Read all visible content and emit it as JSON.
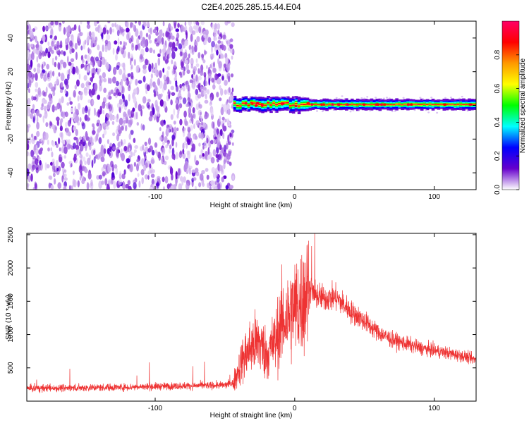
{
  "title": "C2E4.2025.285.15.44.E04",
  "chart_data": [
    {
      "type": "heatmap",
      "xlabel": "Height of straight line (km)",
      "ylabel": "Frequency (Hz)",
      "xlim": [
        -192,
        130
      ],
      "ylim": [
        -50,
        50
      ],
      "xticks": [
        -100,
        0,
        100
      ],
      "yticks": [
        -40,
        -20,
        0,
        20,
        40
      ],
      "colorbar": {
        "label": "Normalized spectral amplitude",
        "range": [
          0,
          1
        ],
        "ticks": [
          0.0,
          0.2,
          0.4,
          0.6,
          0.8
        ],
        "tick_labels": [
          "0.0",
          "0.2",
          "0.4",
          "0.6",
          "0.8"
        ],
        "colors": [
          "#ffffff",
          "#6600cc",
          "#0000ff",
          "#00ffff",
          "#00ff00",
          "#ffff00",
          "#ff9900",
          "#ff0000",
          "#ff0066"
        ]
      },
      "regions": [
        {
          "description_x": [
            -192,
            -44
          ],
          "pattern": "scattered noise",
          "amplitude_range": [
            0.0,
            0.15
          ]
        },
        {
          "description_x": [
            -44,
            130
          ],
          "pattern": "narrow band centered near 0 Hz",
          "band_center_hz": 0.5,
          "band_halfwidth_hz": 2.5,
          "amplitude_range": [
            0.2,
            0.95
          ]
        }
      ]
    },
    {
      "type": "line",
      "xlabel": "Height of straight line (km)",
      "ylabel": "SNR (10 * v/v)",
      "xlim": [
        -192,
        130
      ],
      "ylim": [
        0,
        2520
      ],
      "xticks": [
        -100,
        0,
        100
      ],
      "yticks": [
        500,
        1000,
        1500,
        2000,
        2500
      ],
      "color": "#ee3333",
      "series": [
        {
          "x": [
            -192,
            -160,
            -120,
            -80,
            -50,
            -44,
            -38,
            -32,
            -26,
            -20,
            -14,
            -10,
            -6,
            0,
            6,
            10,
            14,
            20,
            30,
            40,
            50,
            60,
            70,
            80,
            90,
            100,
            110,
            120,
            130
          ],
          "y": [
            190,
            200,
            210,
            230,
            240,
            270,
            600,
            800,
            900,
            700,
            900,
            1150,
            1250,
            1400,
            1500,
            1700,
            1600,
            1550,
            1550,
            1350,
            1200,
            1030,
            920,
            860,
            800,
            760,
            720,
            680,
            620
          ]
        }
      ]
    }
  ]
}
